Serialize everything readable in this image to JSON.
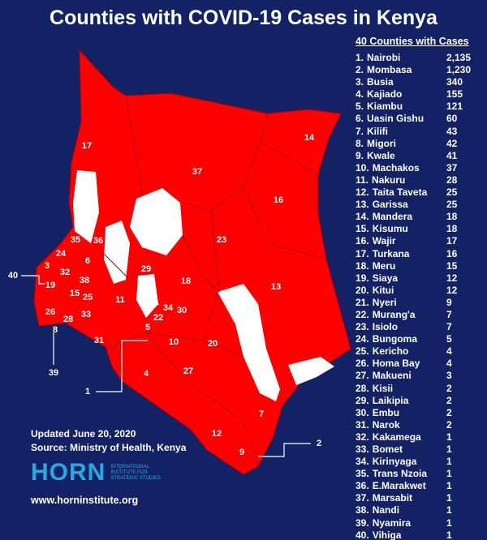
{
  "header": {
    "title": "Counties with COVID-19 Cases in Kenya"
  },
  "list": {
    "heading": "40 Counties with Cases",
    "rows": [
      {
        "rank": "1.",
        "name": "Nairobi",
        "cases": "2,135"
      },
      {
        "rank": "2.",
        "name": "Mombasa",
        "cases": "1,230"
      },
      {
        "rank": "3.",
        "name": "Busia",
        "cases": "340"
      },
      {
        "rank": "4.",
        "name": "Kajiado",
        "cases": "155"
      },
      {
        "rank": "5.",
        "name": "Kiambu",
        "cases": "121"
      },
      {
        "rank": "6.",
        "name": "Uasin Gishu",
        "cases": "60"
      },
      {
        "rank": "7.",
        "name": "Kilifi",
        "cases": "43"
      },
      {
        "rank": "8.",
        "name": "Migori",
        "cases": "42"
      },
      {
        "rank": "9.",
        "name": "Kwale",
        "cases": "41"
      },
      {
        "rank": "10.",
        "name": "Machakos",
        "cases": "37"
      },
      {
        "rank": "11.",
        "name": "Nakuru",
        "cases": "28"
      },
      {
        "rank": "12.",
        "name": "Taita Taveta",
        "cases": "25"
      },
      {
        "rank": "13.",
        "name": "Garissa",
        "cases": "25"
      },
      {
        "rank": "14.",
        "name": "Mandera",
        "cases": "18"
      },
      {
        "rank": "15.",
        "name": "Kisumu",
        "cases": "18"
      },
      {
        "rank": "16.",
        "name": "Wajir",
        "cases": "17"
      },
      {
        "rank": "17.",
        "name": "Turkana",
        "cases": "16"
      },
      {
        "rank": "18.",
        "name": "Meru",
        "cases": "15"
      },
      {
        "rank": "19.",
        "name": "Siaya",
        "cases": "12"
      },
      {
        "rank": "20.",
        "name": "Kitui",
        "cases": "12"
      },
      {
        "rank": "21.",
        "name": "Nyeri",
        "cases": "9"
      },
      {
        "rank": "22.",
        "name": "Murang'a",
        "cases": "7"
      },
      {
        "rank": "23.",
        "name": "Isiolo",
        "cases": "7"
      },
      {
        "rank": "24.",
        "name": "Bungoma",
        "cases": "5"
      },
      {
        "rank": "25.",
        "name": "Kericho",
        "cases": "4"
      },
      {
        "rank": "26.",
        "name": "Homa Bay",
        "cases": "4"
      },
      {
        "rank": "27.",
        "name": "Makueni",
        "cases": "3"
      },
      {
        "rank": "28.",
        "name": "Kisii",
        "cases": "2"
      },
      {
        "rank": "29.",
        "name": "Laikipia",
        "cases": "2"
      },
      {
        "rank": "30.",
        "name": "Embu",
        "cases": "2"
      },
      {
        "rank": "31.",
        "name": "Narok",
        "cases": "2"
      },
      {
        "rank": "32.",
        "name": "Kakamega",
        "cases": "1"
      },
      {
        "rank": "33.",
        "name": "Bomet",
        "cases": "1"
      },
      {
        "rank": "34.",
        "name": "Kirinyaga",
        "cases": "1"
      },
      {
        "rank": "35.",
        "name": "Trans Nzoia",
        "cases": "1"
      },
      {
        "rank": "36.",
        "name": "E.Marakwet",
        "cases": "1"
      },
      {
        "rank": "37.",
        "name": "Marsabit",
        "cases": "1"
      },
      {
        "rank": "38.",
        "name": "Nandi",
        "cases": "1"
      },
      {
        "rank": "39.",
        "name": "Nyamira",
        "cases": "1"
      },
      {
        "rank": "40.",
        "name": "Vihiga",
        "cases": "1"
      }
    ]
  },
  "map": {
    "labels": [
      "17",
      "37",
      "14",
      "16",
      "23",
      "13",
      "35",
      "36",
      "24",
      "6",
      "3",
      "32",
      "38",
      "19",
      "15",
      "25",
      "29",
      "18",
      "11",
      "21",
      "34",
      "30",
      "26",
      "28",
      "33",
      "22",
      "8",
      "31",
      "5",
      "10",
      "20",
      "4",
      "27",
      "7",
      "12",
      "9",
      "40",
      "39",
      "1",
      "2"
    ]
  },
  "footer": {
    "updated": "Updated June 20, 2020",
    "source": "Source: Ministry of Health, Kenya",
    "logo": "HORN",
    "logo_sub": "INTERNATIONAL INSTITUTE FOR STRATEGIC STUDIES",
    "url": "www.horninstitute.org"
  }
}
